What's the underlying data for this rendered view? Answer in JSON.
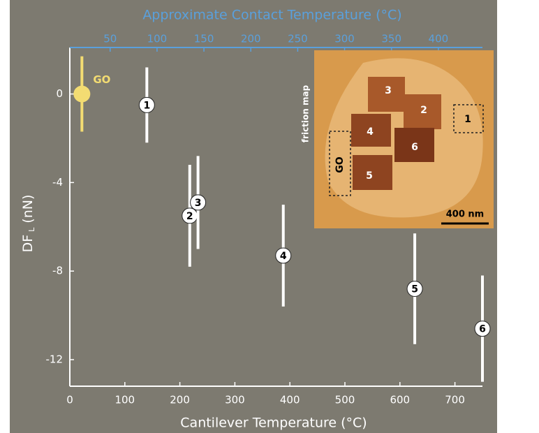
{
  "chart_data": {
    "type": "errorbar",
    "xlabel": "Cantilever Temperature (°C)",
    "x2label": "Approximate Contact Temperature (°C)",
    "ylabel": {
      "main": "DF",
      "sub": "L",
      "unit": "(nN)"
    },
    "xlim": [
      0,
      750
    ],
    "xticks": [
      0,
      100,
      200,
      300,
      400,
      500,
      600,
      700
    ],
    "x2lim": [
      7,
      447
    ],
    "x2ticks": [
      50,
      100,
      150,
      200,
      250,
      300,
      350,
      400
    ],
    "x2color": "#5aa0dc",
    "ylim": [
      -13.2,
      2.1
    ],
    "yticks": [
      0,
      -4,
      -8,
      -12
    ],
    "series": [
      {
        "name": "GO",
        "color": "#f3dc72",
        "x": [
          22
        ],
        "values": [
          0
        ],
        "errors": [
          1.7
        ]
      },
      {
        "color": "#ffffff",
        "x": [
          140,
          218,
          233,
          388,
          627,
          750
        ],
        "values": [
          -0.5,
          -5.5,
          -4.9,
          -7.3,
          -8.8,
          -10.6
        ],
        "errors": [
          1.7,
          2.3,
          2.1,
          2.3,
          2.5,
          2.4
        ],
        "point_labels": [
          "1",
          "2",
          "3",
          "4",
          "5",
          "6"
        ]
      }
    ],
    "inset": {
      "title": "friction map",
      "region_labels": [
        "3",
        "2",
        "4",
        "6",
        "5",
        "1",
        "GO"
      ],
      "scale_bar": "400 nm"
    }
  }
}
